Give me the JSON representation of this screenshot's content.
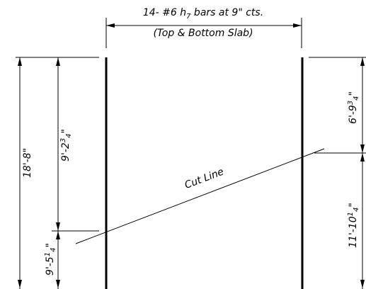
{
  "top_note": {
    "line1_main": "14- #6 h",
    "line1_sub": "7",
    "line1_rest": " bars at 9\" cts.",
    "line2": "(Top & Bottom Slab)"
  },
  "dimensions": {
    "overall": "18'-8\"",
    "left_upper_main": "9'-2",
    "left_upper_num": "3",
    "left_upper_den": "4",
    "left_lower_main": "9'-5",
    "left_lower_num": "1",
    "left_lower_den": "4",
    "right_upper_main": "6'-9",
    "right_upper_num": "3",
    "right_upper_den": "4",
    "right_lower_main": "11'-10",
    "right_lower_num": "1",
    "right_lower_den": "4"
  },
  "cut_line_label": "Cut Line",
  "colors": {
    "ink": "#000000",
    "background": "#ffffff"
  }
}
